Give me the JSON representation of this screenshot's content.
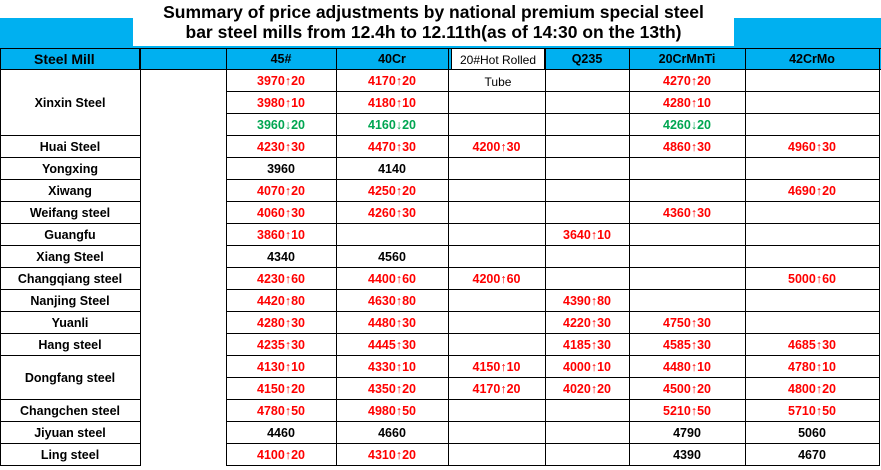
{
  "title": {
    "line1": "Summary of price adjustments by national premium special steel",
    "line2": "bar steel mills from 12.4h to 12.11th(as of 14:30 on the 13th)"
  },
  "colors": {
    "header_bg": "#00b0f0",
    "up": "#ff0000",
    "down": "#00a651",
    "flat": "#000000"
  },
  "columns": {
    "mill": "Steel Mill",
    "c45": "45#",
    "c40cr": "40Cr",
    "c20tube": "20#Hot Rolled Tube",
    "q235": "Q235",
    "c20crmnti": "20CrMnTi",
    "c42crmo": "42CrMo"
  },
  "mills": [
    {
      "name": "Xinxin Steel",
      "span": 3
    },
    {
      "name": "Huai Steel",
      "span": 1
    },
    {
      "name": "Yongxing",
      "span": 1
    },
    {
      "name": "Xiwang",
      "span": 1
    },
    {
      "name": "Weifang steel",
      "span": 1
    },
    {
      "name": "Guangfu",
      "span": 1
    },
    {
      "name": "Xiang Steel",
      "span": 1
    },
    {
      "name": "Changqiang steel",
      "span": 1
    },
    {
      "name": "Nanjing Steel",
      "span": 1
    },
    {
      "name": "Yuanli",
      "span": 1
    },
    {
      "name": "Hang steel",
      "span": 1
    },
    {
      "name": "Dongfang steel",
      "span": 2
    },
    {
      "name": "Changchen steel",
      "span": 1
    },
    {
      "name": "Jiyuan steel",
      "span": 1
    },
    {
      "name": "Ling steel",
      "span": 1
    }
  ],
  "rows": [
    [
      "3970↑20",
      "4170↑20",
      "",
      "",
      "4270↑20",
      ""
    ],
    [
      "3980↑10",
      "4180↑10",
      "",
      "",
      "4280↑10",
      ""
    ],
    [
      "3960↓20",
      "4160↓20",
      "",
      "",
      "4260↓20",
      ""
    ],
    [
      "4230↑30",
      "4470↑30",
      "4200↑30",
      "",
      "4860↑30",
      "4960↑30"
    ],
    [
      "3960",
      "4140",
      "",
      "",
      "",
      ""
    ],
    [
      "4070↑20",
      "4250↑20",
      "",
      "",
      "",
      "4690↑20"
    ],
    [
      "4060↑30",
      "4260↑30",
      "",
      "",
      "4360↑30",
      ""
    ],
    [
      "3860↑10",
      "",
      "",
      "3640↑10",
      "",
      ""
    ],
    [
      "4340",
      "4560",
      "",
      "",
      "",
      ""
    ],
    [
      "4230↑60",
      "4400↑60",
      "4200↑60",
      "",
      "",
      "5000↑60"
    ],
    [
      "4420↑80",
      "4630↑80",
      "",
      "4390↑80",
      "",
      ""
    ],
    [
      "4280↑30",
      "4480↑30",
      "",
      "4220↑30",
      "4750↑30",
      ""
    ],
    [
      "4235↑30",
      "4445↑30",
      "",
      "4185↑30",
      "4585↑30",
      "4685↑30"
    ],
    [
      "4130↑10",
      "4330↑10",
      "4150↑10",
      "4000↑10",
      "4480↑10",
      "4780↑10"
    ],
    [
      "4150↑20",
      "4350↑20",
      "4170↑20",
      "4020↑20",
      "4500↑20",
      "4800↑20"
    ],
    [
      "4780↑50",
      "4980↑50",
      "",
      "",
      "5210↑50",
      "5710↑50"
    ],
    [
      "4460",
      "4660",
      "",
      "",
      "4790",
      "5060"
    ],
    [
      "4100↑20",
      "4310↑20",
      "",
      "",
      "4390",
      "4670"
    ]
  ]
}
